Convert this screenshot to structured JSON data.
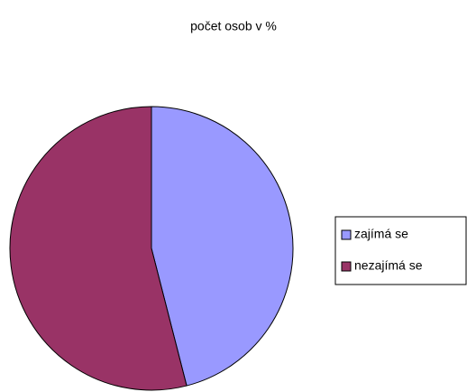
{
  "chart_data": {
    "type": "pie",
    "title": "počet osob v %",
    "categories": [
      "zajímá se",
      "nezajímá se"
    ],
    "values": [
      46,
      54
    ],
    "colors": [
      "#9999ff",
      "#993366"
    ],
    "legend": "right"
  }
}
